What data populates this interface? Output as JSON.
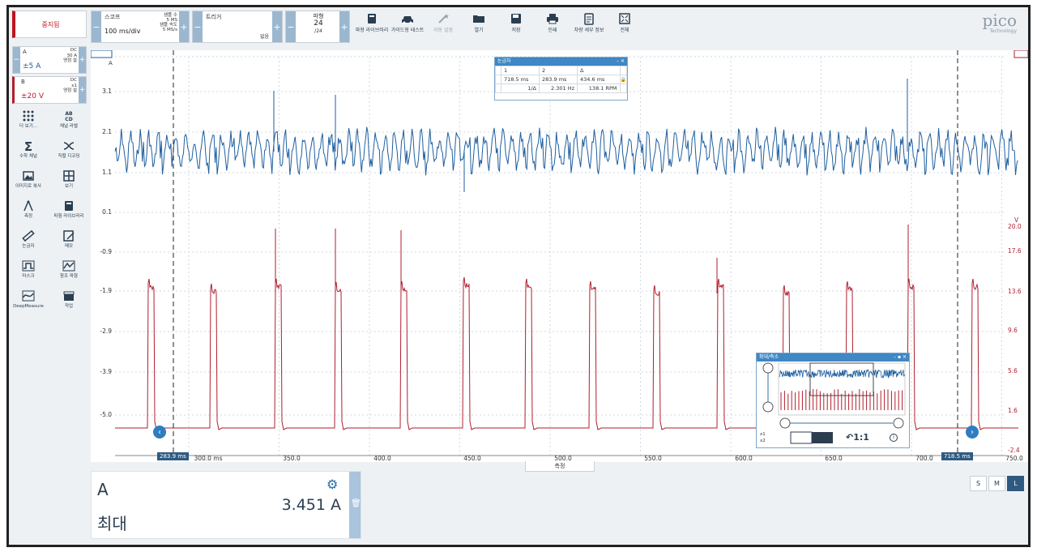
{
  "toolbar": {
    "stop_label": "중지됨",
    "scope_title": "스코프",
    "timebase": "100 ms/div",
    "samples_label": "샘플 수",
    "samples_value": "5 MS",
    "rate_label": "샘플 속도",
    "rate_value": "5 MS/s",
    "trigger_title": "트리거",
    "trigger_mode": "없음",
    "waveform_title": "파형",
    "waveform_current": "24",
    "waveform_total": "/24",
    "buttons": [
      {
        "label": "파형 라이브러리",
        "icon": "book-icon",
        "enabled": true
      },
      {
        "label": "가이드형 테스트",
        "icon": "car-icon",
        "enabled": true
      },
      {
        "label": "자동 설정",
        "icon": "wand-icon",
        "enabled": false
      },
      {
        "label": "열기",
        "icon": "folder-icon",
        "enabled": true
      },
      {
        "label": "저장",
        "icon": "save-icon",
        "enabled": true
      },
      {
        "label": "인쇄",
        "icon": "print-icon",
        "enabled": true
      },
      {
        "label": "차량 세부 정보",
        "icon": "clipboard-icon",
        "enabled": true
      },
      {
        "label": "전체",
        "icon": "fullscreen-icon",
        "enabled": true
      }
    ],
    "logo_main": "pico",
    "logo_sub": "Technology"
  },
  "channels": [
    {
      "name": "A",
      "range": "±5 A",
      "coupling": "DC",
      "probe": "30 A",
      "mode": "영점 설",
      "color": "#1f5fa0"
    },
    {
      "name": "B",
      "range": "±20 V",
      "coupling": "DC",
      "probe": "x1",
      "mode": "영점 설",
      "color": "#b01e2e"
    }
  ],
  "tools": [
    {
      "label": "더 보기...",
      "icon": "more-icon"
    },
    {
      "label": "채널 라벨",
      "icon": "abcd-icon"
    },
    {
      "label": "수학 채널",
      "icon": "sigma-icon"
    },
    {
      "label": "직렬 디코딩",
      "icon": "decode-icon"
    },
    {
      "label": "이미지로 복사",
      "icon": "image-icon"
    },
    {
      "label": "보기",
      "icon": "grid-icon"
    },
    {
      "label": "측정",
      "icon": "compass-icon"
    },
    {
      "label": "파형 라이브러리",
      "icon": "book-icon"
    },
    {
      "label": "눈금자",
      "icon": "ruler-icon"
    },
    {
      "label": "메모",
      "icon": "note-icon"
    },
    {
      "label": "마스크",
      "icon": "mask-icon"
    },
    {
      "label": "참조 파형",
      "icon": "reference-icon"
    },
    {
      "label": "DeepMeasure",
      "icon": "deepmeasure-icon"
    },
    {
      "label": "작업",
      "icon": "clapper-icon"
    }
  ],
  "scope": {
    "left_axis_unit": "A",
    "left_axis_top": "4.1",
    "left_ticks": [
      "3.1",
      "2.1",
      "1.1",
      "0.1",
      "-0.9",
      "-1.9",
      "-2.9",
      "-3.9",
      "-5.0"
    ],
    "right_axis_unit": "V",
    "right_ticks": [
      "20.0",
      "17.6",
      "13.6",
      "9.6",
      "5.6",
      "1.6",
      "-2.4"
    ],
    "x_ticks": [
      "300.0 ms",
      "350.0",
      "400.0",
      "450.0",
      "500.0",
      "550.0",
      "600.0",
      "650.0",
      "700.0",
      "750.0"
    ],
    "marker_left": "283.9 ms",
    "marker_right": "718.5 ms",
    "measure_tab": "측정"
  },
  "ruler_popup": {
    "title": "눈금자",
    "col1": "1",
    "col2": "2",
    "col3": "Δ",
    "v1": "718.5 ms",
    "v2": "283.9 ms",
    "delta": "434.6 ms",
    "inv_label": "1/Δ",
    "freq": "2.301 Hz",
    "rpm": "138.1 RPM"
  },
  "zoom_popup": {
    "title": "확대/축소",
    "x1": "x1",
    "x2": "x2",
    "ratio": "1:1"
  },
  "measurement": {
    "channel": "A",
    "type": "최대",
    "value": "3.451 A"
  },
  "size_buttons": [
    "S",
    "M",
    "L"
  ]
}
